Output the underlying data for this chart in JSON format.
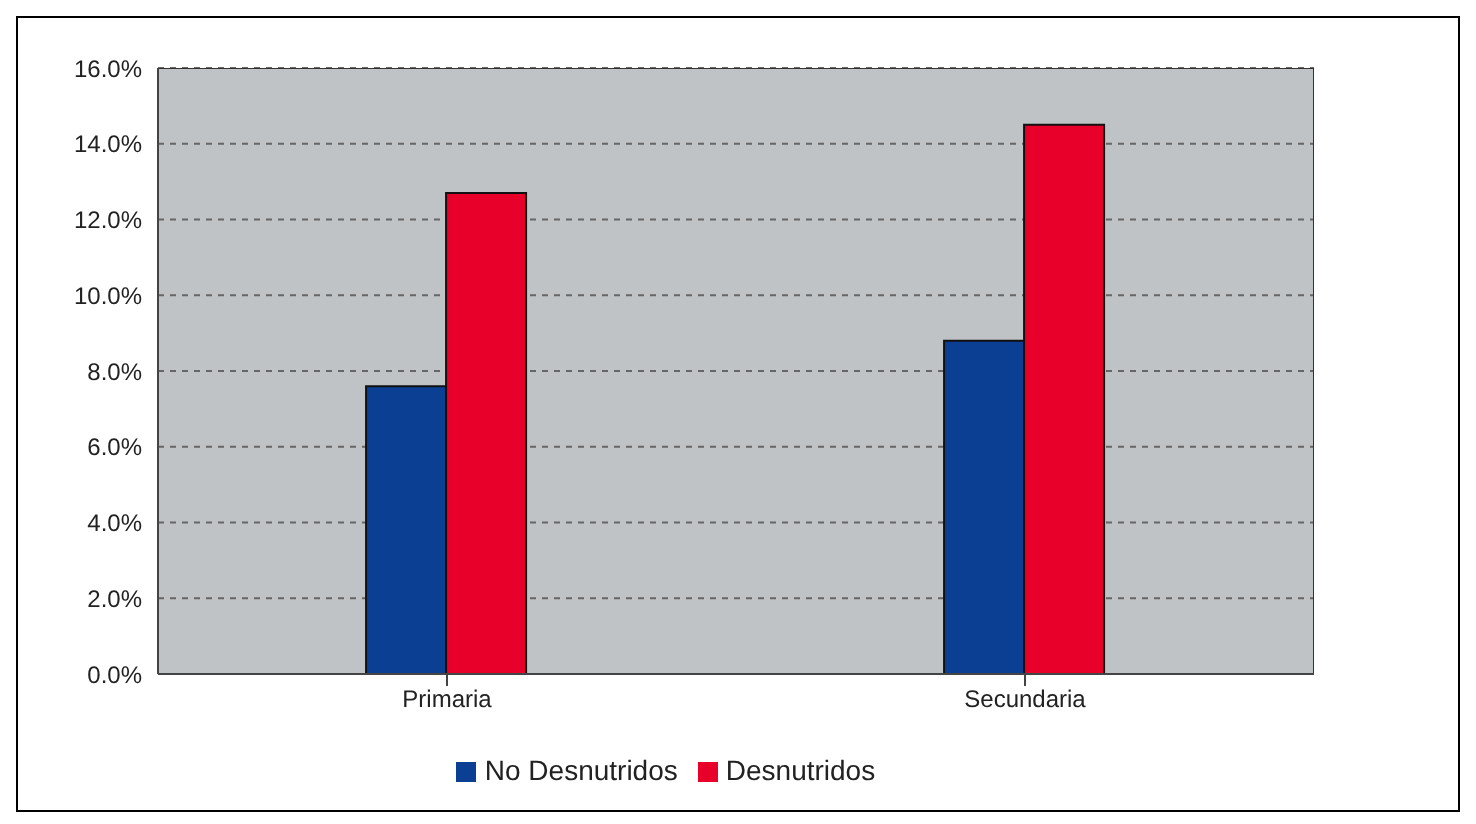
{
  "chart_data": {
    "type": "bar",
    "categories": [
      "Primaria",
      "Secundaria"
    ],
    "series": [
      {
        "name": "No Desnutridos",
        "color": "#0b3f94",
        "values": [
          7.6,
          8.8
        ]
      },
      {
        "name": "Desnutridos",
        "color": "#e8002a",
        "values": [
          12.7,
          14.5
        ]
      }
    ],
    "ylim": [
      0,
      16
    ],
    "yticks": [
      {
        "value": 0,
        "label": "0.0%"
      },
      {
        "value": 2,
        "label": "2.0%"
      },
      {
        "value": 4,
        "label": "4.0%"
      },
      {
        "value": 6,
        "label": "6.0%"
      },
      {
        "value": 8,
        "label": "8.0%"
      },
      {
        "value": 10,
        "label": "10.0%"
      },
      {
        "value": 12,
        "label": "12.0%"
      },
      {
        "value": 14,
        "label": "14.0%"
      },
      {
        "value": 16,
        "label": "16.0%"
      }
    ],
    "grid": "y",
    "legend": "bottom"
  }
}
